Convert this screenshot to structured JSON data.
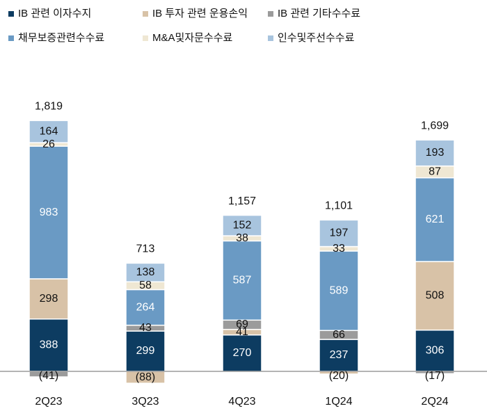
{
  "chart_data": {
    "type": "stacked-bar",
    "categories": [
      "2Q23",
      "3Q23",
      "4Q23",
      "1Q24",
      "2Q24"
    ],
    "series": [
      {
        "name": "IB 관련 이자수지",
        "color": "#0d3c61",
        "values": [
          388,
          299,
          270,
          237,
          306
        ]
      },
      {
        "name": "IB 투자 관련 운용손익",
        "color": "#d8c2a7",
        "values": [
          298,
          -88,
          41,
          -20,
          508
        ],
        "value_labels": [
          "298",
          "(88)",
          "41",
          "(20)",
          "508"
        ]
      },
      {
        "name": "IB 관련 기타수수료",
        "color": "#9b9b9b",
        "values": [
          -41,
          43,
          69,
          66,
          -17
        ],
        "value_labels": [
          "(41)",
          "43",
          "69",
          "66",
          "(17)"
        ]
      },
      {
        "name": "채무보증관련수수료",
        "color": "#6a9ac4",
        "values": [
          983,
          264,
          587,
          589,
          621
        ]
      },
      {
        "name": "M&A및자문수수료",
        "color": "#efe7d3",
        "values": [
          26,
          58,
          38,
          33,
          87
        ]
      },
      {
        "name": "인수및주선수수료",
        "color": "#a8c4de",
        "values": [
          164,
          138,
          152,
          197,
          193
        ]
      }
    ],
    "totals": {
      "values": [
        1819,
        713,
        1157,
        1101,
        1699
      ],
      "value_labels": [
        "1,819",
        "713",
        "1,157",
        "1,101",
        "1,699"
      ]
    }
  }
}
